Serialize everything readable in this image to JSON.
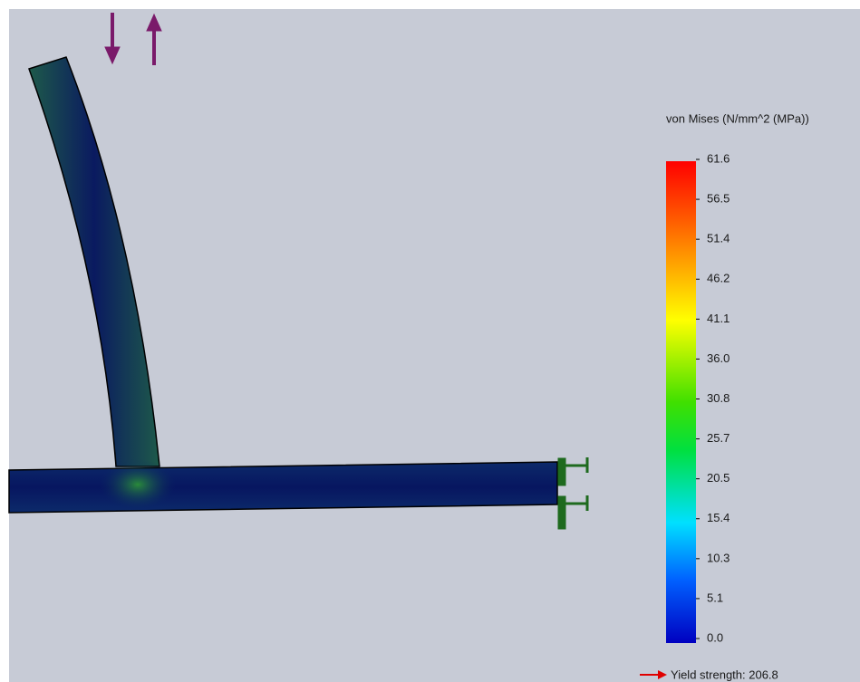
{
  "legend": {
    "title": "von Mises (N/mm^2 (MPa))",
    "ticks": [
      "61.6",
      "56.5",
      "51.4",
      "46.2",
      "41.1",
      "36.0",
      "30.8",
      "25.7",
      "20.5",
      "15.4",
      "10.3",
      "5.1",
      "0.0"
    ]
  },
  "yield_strength": "Yield strength: 206.8"
}
